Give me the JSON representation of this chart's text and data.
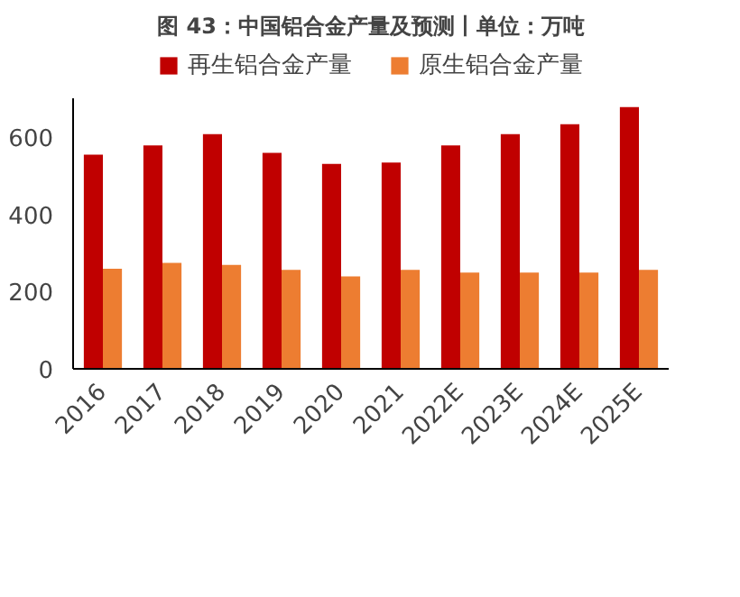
{
  "chart_data": {
    "type": "bar",
    "title": "图 43：中国铝合金产量及预测丨单位：万吨",
    "categories": [
      "2016",
      "2017",
      "2018",
      "2019",
      "2020",
      "2021",
      "2022E",
      "2023E",
      "2024E",
      "2025E"
    ],
    "series": [
      {
        "name": "再生铝合金产量",
        "color": "#c00000",
        "values": [
          554,
          578,
          607,
          559,
          530,
          534,
          578,
          607,
          633,
          677
        ]
      },
      {
        "name": "原生铝合金产量",
        "color": "#ed7d31",
        "values": [
          259,
          274,
          269,
          256,
          239,
          256,
          249,
          249,
          249,
          256
        ]
      }
    ],
    "ylim": [
      0,
      700
    ],
    "yticks": [
      0,
      200,
      400,
      600
    ],
    "grid": false,
    "legend": "top"
  }
}
